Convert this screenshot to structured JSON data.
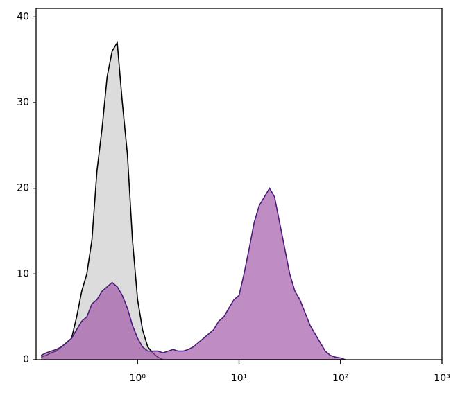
{
  "chart_data": {
    "type": "histogram-overlay",
    "x": [
      0.112,
      0.126,
      0.141,
      0.158,
      0.178,
      0.2,
      0.224,
      0.251,
      0.282,
      0.316,
      0.355,
      0.398,
      0.447,
      0.501,
      0.562,
      0.631,
      0.708,
      0.794,
      0.891,
      1,
      1.12,
      1.26,
      1.41,
      1.58,
      1.78,
      2.0,
      2.24,
      2.51,
      2.82,
      3.16,
      3.55,
      3.98,
      4.47,
      5.01,
      5.62,
      6.31,
      7.08,
      7.94,
      8.91,
      10,
      11.2,
      12.6,
      14.1,
      15.8,
      17.8,
      20,
      22.4,
      25.1,
      28.2,
      31.6,
      35.5,
      39.8,
      44.7,
      50.1,
      56.2,
      63.1,
      70.8,
      79.4,
      89.1,
      100,
      112
    ],
    "series": [
      {
        "color": "#000000",
        "fill": "#dcdcdc",
        "values": [
          0.3,
          0.5,
          0.8,
          1,
          1.5,
          2,
          2.5,
          5,
          8,
          10,
          14,
          22,
          27,
          33,
          36,
          37,
          30,
          24,
          14,
          7,
          3.5,
          1.5,
          0.8,
          0.3,
          0,
          0,
          0,
          0,
          0,
          0,
          0,
          0,
          0,
          0,
          0,
          0,
          0,
          0,
          0,
          0,
          0,
          0,
          0,
          0,
          0,
          0,
          0,
          0,
          0,
          0,
          0,
          0,
          0,
          0,
          0,
          0,
          0,
          0,
          0,
          0,
          0
        ]
      },
      {
        "color": "#4b1a7a",
        "fill": "#9c4ea3",
        "values": [
          0.5,
          0.8,
          1,
          1.2,
          1.5,
          2,
          2.5,
          3.5,
          4.5,
          5,
          6.5,
          7,
          8,
          8.5,
          9,
          8.5,
          7.5,
          6,
          4,
          2.5,
          1.5,
          1,
          1,
          1,
          0.8,
          1,
          1.2,
          1,
          1,
          1.2,
          1.5,
          2,
          2.5,
          3,
          3.5,
          4.5,
          5,
          6,
          7,
          7.5,
          10,
          13,
          16,
          18,
          19,
          20,
          19,
          16,
          13,
          10,
          8,
          7,
          5.5,
          4,
          3,
          2,
          1,
          0.5,
          0.3,
          0.2,
          0
        ]
      }
    ],
    "xlim": [
      0.1,
      1000
    ],
    "log_x": true,
    "xticks": [
      {
        "value": 1,
        "label": "10⁰"
      },
      {
        "value": 10,
        "label": "10¹"
      },
      {
        "value": 100,
        "label": "10²"
      },
      {
        "value": 1000,
        "label": "10³"
      }
    ],
    "ylim": [
      0,
      41
    ],
    "yticks": [
      0,
      10,
      20,
      30,
      40
    ]
  }
}
